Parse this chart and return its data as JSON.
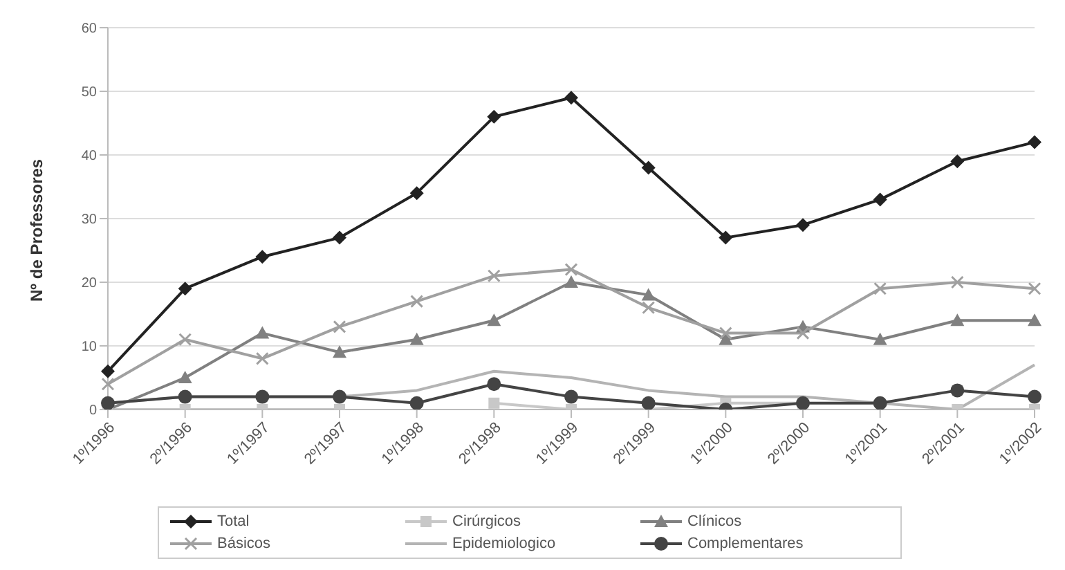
{
  "chart_data": {
    "type": "line",
    "ylabel": "Nº de Professores",
    "categories": [
      "1º/1996",
      "2º/1996",
      "1º/1997",
      "2º/1997",
      "1º/1998",
      "2º/1998",
      "1º/1999",
      "2º/1999",
      "1º/2000",
      "2º/2000",
      "1º/2001",
      "2º/2001",
      "1º/2002"
    ],
    "series": [
      {
        "name": "Total",
        "color": "#222222",
        "marker": "diamond",
        "values": [
          6,
          19,
          24,
          27,
          34,
          46,
          49,
          38,
          27,
          29,
          33,
          39,
          42
        ]
      },
      {
        "name": "Cirúrgicos",
        "color": "#c8c8c8",
        "marker": "square",
        "values": [
          0,
          0,
          0,
          0,
          null,
          1,
          0,
          0,
          1,
          1,
          null,
          0,
          0
        ]
      },
      {
        "name": "Clínicos",
        "color": "#808080",
        "marker": "triangle",
        "values": [
          0,
          5,
          12,
          9,
          11,
          14,
          20,
          18,
          11,
          13,
          11,
          14,
          14
        ]
      },
      {
        "name": "Básicos",
        "color": "#a0a0a0",
        "marker": "cross",
        "values": [
          4,
          11,
          8,
          13,
          17,
          21,
          22,
          16,
          12,
          12,
          19,
          20,
          19
        ]
      },
      {
        "name": "Epidemiologico",
        "color": "#b4b4b4",
        "marker": "none",
        "values": [
          1,
          2,
          2,
          2,
          3,
          6,
          5,
          3,
          2,
          2,
          1,
          0,
          7
        ]
      },
      {
        "name": "Complementares",
        "color": "#444444",
        "marker": "circle",
        "values": [
          1,
          2,
          2,
          2,
          1,
          4,
          2,
          1,
          0,
          1,
          1,
          3,
          2
        ]
      }
    ],
    "ylim": [
      0,
      60
    ],
    "yticks": [
      0,
      10,
      20,
      30,
      40,
      50,
      60
    ],
    "grid": "y",
    "legend": "bottom"
  }
}
